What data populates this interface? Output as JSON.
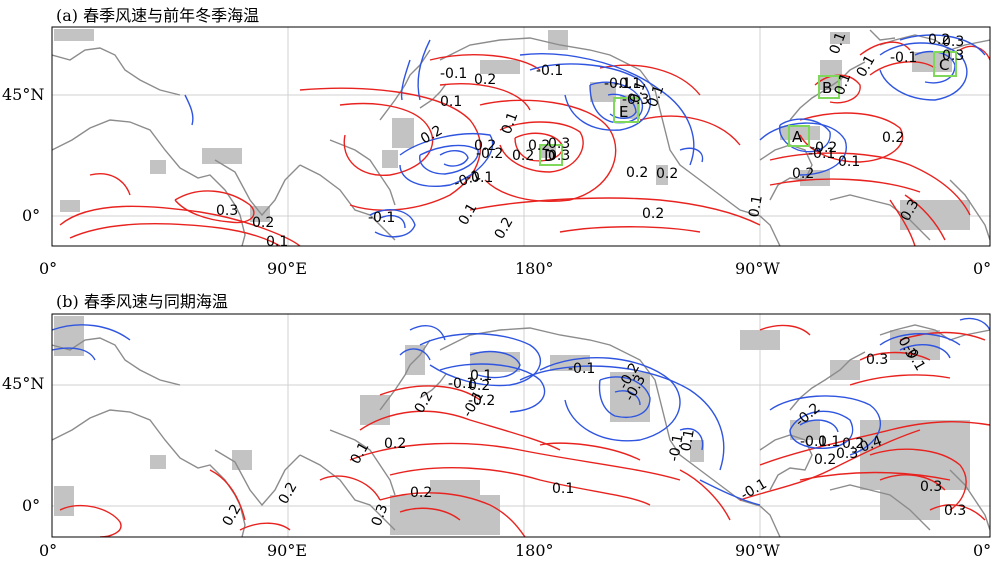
{
  "panel_a": {
    "title": "(a) 春季风速与前年冬季海温",
    "contour_labels": [
      "0.2",
      "-0.1",
      "0.1",
      "0.2",
      "0.3",
      "0.2",
      "-0.1",
      "-0.1",
      "-0.2",
      "0.1",
      "0.2",
      "0.1",
      "0.2",
      "0.2",
      "0.3",
      "0.1",
      "0.2",
      "0.1",
      "-0.1",
      "-0.1",
      "0.2",
      "-0.1",
      "0.1",
      "0.3",
      "0.2",
      "0.1",
      "0.1",
      "0.1",
      "-0.3",
      "-0.1",
      "0.3",
      "0.1",
      "0.2",
      "0.2",
      "-0.2",
      "0.3",
      "0.2",
      "-0.1",
      "-0.1",
      "0.1",
      "0.3",
      "0.2"
    ],
    "boxes": [
      "A",
      "B",
      "C",
      "D",
      "E"
    ]
  },
  "panel_b": {
    "title": "(b) 春季风速与同期海温",
    "contour_labels": [
      "0.2",
      "0.2",
      "-0.1",
      "-0.2",
      "-0.1",
      "0.2",
      "0.1",
      "0.1",
      "0.2",
      "0.2",
      "0.3",
      "0.2",
      "0.1",
      "-0.1",
      "-0.2",
      "-0.3",
      "-0.1",
      "0.1",
      "-0.2",
      "-0.1",
      "0.1",
      "0.2",
      "0.3",
      "0.2",
      "0.4",
      "0.3",
      "0.3",
      "-0.1",
      "-0.1",
      "0.3",
      "0.3"
    ]
  },
  "axes": {
    "x_ticks": [
      "0°",
      "90°E",
      "180°",
      "90°W",
      "0°"
    ],
    "y_ticks_a": [
      "45°N",
      "0°"
    ],
    "y_ticks_b": [
      "45°N",
      "0°"
    ]
  },
  "colors": {
    "positive": "#e8231f",
    "negative": "#2f55e0",
    "coast": "#8c8c8c",
    "shade": "#c0c0c0",
    "box": "#7fd85a",
    "grid": "#d0d0d0"
  }
}
